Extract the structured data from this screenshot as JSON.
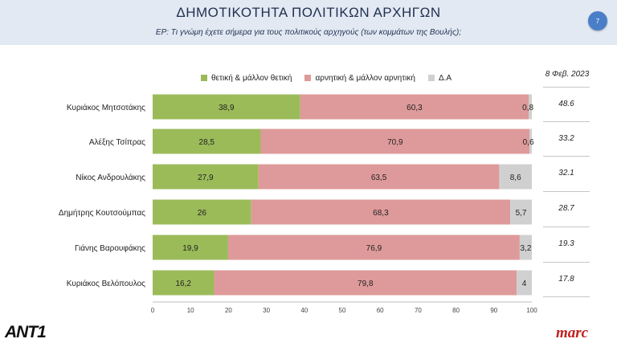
{
  "header": {
    "title": "ΔΗΜΟΤΙΚΟΤΗΤΑ ΠΟΛΙΤΙΚΩΝ ΑΡΧΗΓΩΝ",
    "subtitle": "ΕΡ: Τι γνώμη έχετε σήμερα για τους πολιτικούς αρχηγούς (των κομμάτων της Βουλής);",
    "page_number": "7"
  },
  "colors": {
    "positive": "#9bbb59",
    "negative": "#de9a9a",
    "dk": "#d0d0d0"
  },
  "side_panel": {
    "date": "8 Φεβ. 2023",
    "values": [
      "48.6",
      "33.2",
      "32.1",
      "28.7",
      "19.3",
      "17.8"
    ]
  },
  "logos": {
    "left": "ANT1",
    "right": "marc"
  },
  "chart_data": {
    "type": "bar",
    "orientation": "horizontal",
    "stacked": true,
    "categories": [
      "Κυριάκος Μητσοτάκης",
      "Αλέξης Τσίπρας",
      "Νίκος Ανδρουλάκης",
      "Δημήτρης Κουτσούμπας",
      "Γιάνης Βαρουφάκης",
      "Κυριάκος Βελόπουλος"
    ],
    "series": [
      {
        "name": "θετική & μάλλον θετική",
        "values": [
          38.9,
          28.5,
          27.9,
          26,
          19.9,
          16.2
        ],
        "labels": [
          "38,9",
          "28,5",
          "27,9",
          "26",
          "19,9",
          "16,2"
        ]
      },
      {
        "name": "αρνητική & μάλλον αρνητική",
        "values": [
          60.3,
          70.9,
          63.5,
          68.3,
          76.9,
          79.8
        ],
        "labels": [
          "60,3",
          "70,9",
          "63,5",
          "68,3",
          "76,9",
          "79,8"
        ]
      },
      {
        "name": "Δ.Α",
        "values": [
          0.8,
          0.6,
          8.6,
          5.7,
          3.2,
          4
        ],
        "labels": [
          "0,8",
          "0,6",
          "8,6",
          "5,7",
          "3,2",
          "4"
        ]
      }
    ],
    "xlim": [
      0,
      100
    ],
    "xticks": [
      0,
      10,
      20,
      30,
      40,
      50,
      60,
      70,
      80,
      90,
      100
    ],
    "legend_position": "top",
    "grid": false
  }
}
